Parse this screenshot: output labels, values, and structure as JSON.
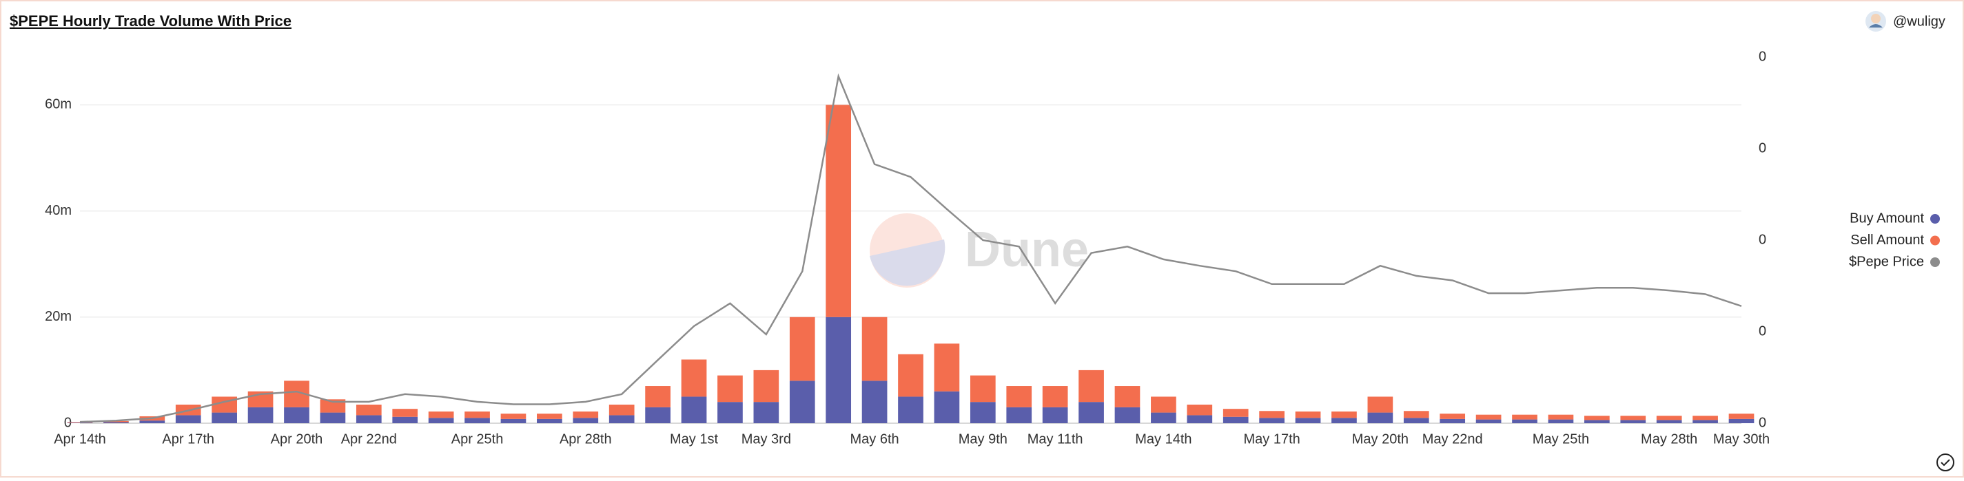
{
  "header": {
    "author": "@wuligy"
  },
  "chart_data": {
    "type": "bar",
    "title": "$PEPE Hourly Trade Volume With Price",
    "watermark": "Dune",
    "categories": [
      "Apr 14th",
      null,
      null,
      "Apr 17th",
      null,
      null,
      "Apr 20th",
      null,
      "Apr 22nd",
      null,
      null,
      "Apr 25th",
      null,
      null,
      "Apr 28th",
      null,
      null,
      "May 1st",
      null,
      "May 3rd",
      null,
      null,
      "May 6th",
      null,
      null,
      "May 9th",
      null,
      "May 11th",
      null,
      null,
      "May 14th",
      null,
      null,
      "May 17th",
      null,
      null,
      "May 20th",
      null,
      "May 22nd",
      null,
      null,
      "May 25th",
      null,
      null,
      "May 28th",
      null,
      "May 30th"
    ],
    "series": [
      {
        "name": "Buy Amount",
        "color": "#5a5eab",
        "type": "bar",
        "values": [
          100000,
          200000,
          500000,
          1500000,
          2000000,
          3000000,
          3000000,
          2000000,
          1500000,
          1200000,
          1000000,
          1000000,
          800000,
          800000,
          1000000,
          1500000,
          3000000,
          5000000,
          4000000,
          4000000,
          8000000,
          20000000,
          8000000,
          5000000,
          6000000,
          4000000,
          3000000,
          3000000,
          4000000,
          3000000,
          2000000,
          1500000,
          1200000,
          1000000,
          1000000,
          1000000,
          2000000,
          1000000,
          800000,
          700000,
          700000,
          700000,
          600000,
          600000,
          600000,
          600000,
          800000
        ]
      },
      {
        "name": "Sell Amount",
        "color": "#f36e4e",
        "type": "bar",
        "values": [
          100000,
          200000,
          800000,
          2000000,
          3000000,
          3000000,
          5000000,
          2500000,
          2000000,
          1500000,
          1200000,
          1200000,
          1000000,
          1000000,
          1200000,
          2000000,
          4000000,
          7000000,
          5000000,
          6000000,
          12000000,
          40000000,
          12000000,
          8000000,
          9000000,
          5000000,
          4000000,
          4000000,
          6000000,
          4000000,
          3000000,
          2000000,
          1500000,
          1300000,
          1200000,
          1200000,
          3000000,
          1300000,
          1000000,
          900000,
          900000,
          900000,
          800000,
          800000,
          800000,
          800000,
          1000000
        ]
      },
      {
        "name": "$Pepe Price",
        "color": "#8c8c8c",
        "type": "line",
        "axis": "y2",
        "values": [
          1.4e-08,
          2.8e-08,
          5.5e-08,
          1.38e-07,
          2.34e-07,
          3.17e-07,
          3.45e-07,
          2.34e-07,
          2.34e-07,
          3.17e-07,
          2.9e-07,
          2.34e-07,
          2.07e-07,
          2.07e-07,
          2.34e-07,
          3.17e-07,
          6.9e-07,
          1.06e-06,
          1.31e-06,
          9.7e-07,
          1.66e-06,
          3.79e-06,
          2.83e-06,
          2.69e-06,
          2.34e-06,
          2e-06,
          1.93e-06,
          1.31e-06,
          1.86e-06,
          1.93e-06,
          1.79e-06,
          1.72e-06,
          1.66e-06,
          1.52e-06,
          1.52e-06,
          1.52e-06,
          1.72e-06,
          1.61e-06,
          1.56e-06,
          1.42e-06,
          1.42e-06,
          1.45e-06,
          1.48e-06,
          1.48e-06,
          1.45e-06,
          1.41e-06,
          1.28e-06
        ]
      }
    ],
    "ylim": [
      0,
      69000000
    ],
    "yticks": [
      0,
      {
        "value": 20000000,
        "label": "20m"
      },
      {
        "value": 40000000,
        "label": "40m"
      },
      {
        "value": 60000000,
        "label": "60m"
      }
    ],
    "y2lim": [
      0,
      4e-06
    ],
    "y2ticks": [
      0,
      {
        "value": 1e-06,
        "label": "0"
      },
      {
        "value": 2e-06,
        "label": "0"
      },
      {
        "value": 3e-06,
        "label": "0"
      },
      {
        "value": 4e-06,
        "label": "0"
      }
    ],
    "grid": true,
    "legend": "right"
  }
}
